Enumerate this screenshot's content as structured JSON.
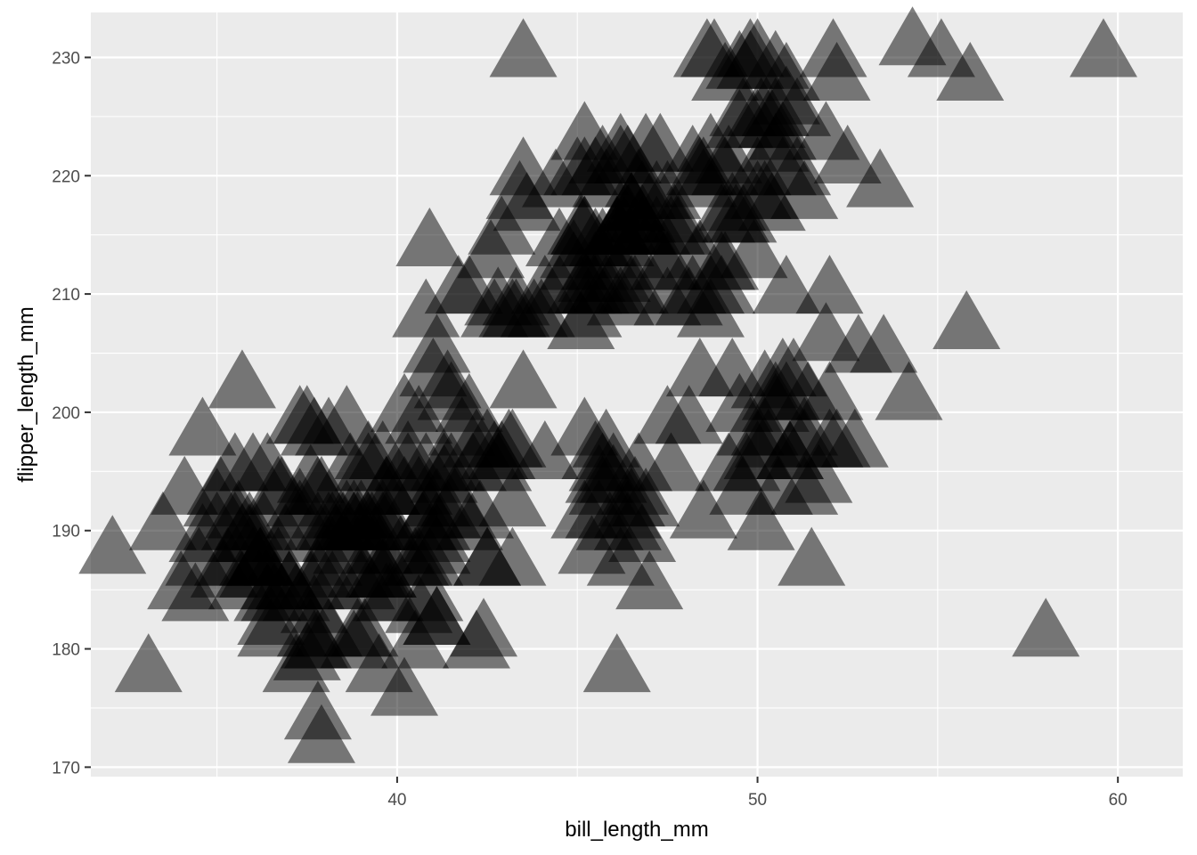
{
  "chart_data": {
    "type": "scatter",
    "marker": "triangle",
    "marker_color": "#000000",
    "marker_opacity": 0.5,
    "panel_background": "#ebebeb",
    "grid_color": "#ffffff",
    "grid": true,
    "xlabel": "bill_length_mm",
    "ylabel": "flipper_length_mm",
    "xlim": [
      31.5,
      61.8
    ],
    "ylim": [
      169.2,
      233.8
    ],
    "x_ticks": [
      40,
      50,
      60
    ],
    "y_ticks": [
      170,
      180,
      190,
      200,
      210,
      220,
      230
    ],
    "points": [
      [
        39.1,
        181
      ],
      [
        39.5,
        186
      ],
      [
        40.3,
        195
      ],
      [
        36.7,
        193
      ],
      [
        39.3,
        190
      ],
      [
        38.9,
        181
      ],
      [
        39.2,
        195
      ],
      [
        34.1,
        193
      ],
      [
        42.0,
        190
      ],
      [
        37.8,
        186
      ],
      [
        37.8,
        180
      ],
      [
        41.1,
        182
      ],
      [
        38.6,
        191
      ],
      [
        34.6,
        198
      ],
      [
        36.6,
        185
      ],
      [
        38.7,
        195
      ],
      [
        42.5,
        197
      ],
      [
        34.4,
        184
      ],
      [
        46.0,
        194
      ],
      [
        37.8,
        174
      ],
      [
        37.7,
        180
      ],
      [
        35.9,
        189
      ],
      [
        38.2,
        185
      ],
      [
        38.8,
        180
      ],
      [
        35.3,
        187
      ],
      [
        40.6,
        183
      ],
      [
        40.5,
        187
      ],
      [
        37.9,
        172
      ],
      [
        40.5,
        180
      ],
      [
        39.5,
        178
      ],
      [
        37.2,
        178
      ],
      [
        39.5,
        188
      ],
      [
        40.9,
        184
      ],
      [
        36.4,
        195
      ],
      [
        39.2,
        196
      ],
      [
        38.8,
        190
      ],
      [
        42.2,
        180
      ],
      [
        37.6,
        181
      ],
      [
        39.8,
        184
      ],
      [
        36.5,
        182
      ],
      [
        40.8,
        195
      ],
      [
        36.0,
        186
      ],
      [
        44.1,
        196
      ],
      [
        37.0,
        185
      ],
      [
        39.6,
        190
      ],
      [
        41.1,
        182
      ],
      [
        37.5,
        179
      ],
      [
        42.3,
        191
      ],
      [
        39.6,
        186
      ],
      [
        40.1,
        188
      ],
      [
        35.0,
        190
      ],
      [
        42.0,
        200
      ],
      [
        34.5,
        187
      ],
      [
        41.4,
        191
      ],
      [
        39.0,
        186
      ],
      [
        40.6,
        193
      ],
      [
        36.5,
        181
      ],
      [
        37.6,
        194
      ],
      [
        35.7,
        185
      ],
      [
        41.3,
        195
      ],
      [
        37.6,
        185
      ],
      [
        41.1,
        192
      ],
      [
        36.4,
        184
      ],
      [
        41.6,
        192
      ],
      [
        35.5,
        195
      ],
      [
        41.1,
        188
      ],
      [
        35.9,
        190
      ],
      [
        41.8,
        198
      ],
      [
        33.5,
        190
      ],
      [
        39.7,
        190
      ],
      [
        39.6,
        196
      ],
      [
        45.8,
        197
      ],
      [
        35.5,
        190
      ],
      [
        42.8,
        195
      ],
      [
        40.9,
        191
      ],
      [
        37.2,
        184
      ],
      [
        36.2,
        187
      ],
      [
        42.1,
        195
      ],
      [
        34.6,
        189
      ],
      [
        42.9,
        196
      ],
      [
        36.7,
        187
      ],
      [
        35.1,
        193
      ],
      [
        37.3,
        191
      ],
      [
        41.3,
        194
      ],
      [
        36.3,
        190
      ],
      [
        36.9,
        189
      ],
      [
        38.3,
        189
      ],
      [
        38.9,
        190
      ],
      [
        35.7,
        202
      ],
      [
        41.1,
        205
      ],
      [
        34.0,
        185
      ],
      [
        39.6,
        186
      ],
      [
        36.2,
        187
      ],
      [
        40.8,
        208
      ],
      [
        38.1,
        190
      ],
      [
        40.3,
        196
      ],
      [
        33.1,
        178
      ],
      [
        43.2,
        192
      ],
      [
        35.0,
        192
      ],
      [
        41.0,
        203
      ],
      [
        37.7,
        183
      ],
      [
        37.8,
        190
      ],
      [
        37.9,
        193
      ],
      [
        39.7,
        184
      ],
      [
        38.6,
        199
      ],
      [
        38.2,
        190
      ],
      [
        38.1,
        181
      ],
      [
        43.2,
        197
      ],
      [
        38.1,
        198
      ],
      [
        45.6,
        191
      ],
      [
        39.7,
        193
      ],
      [
        42.2,
        197
      ],
      [
        39.6,
        191
      ],
      [
        42.7,
        196
      ],
      [
        38.6,
        188
      ],
      [
        37.3,
        199
      ],
      [
        35.7,
        189
      ],
      [
        41.1,
        189
      ],
      [
        36.2,
        187
      ],
      [
        37.7,
        198
      ],
      [
        40.2,
        176
      ],
      [
        41.4,
        202
      ],
      [
        35.2,
        186
      ],
      [
        40.6,
        199
      ],
      [
        38.8,
        191
      ],
      [
        41.5,
        195
      ],
      [
        39.0,
        191
      ],
      [
        44.1,
        210
      ],
      [
        38.5,
        190
      ],
      [
        43.1,
        197
      ],
      [
        36.8,
        193
      ],
      [
        37.5,
        199
      ],
      [
        38.1,
        187
      ],
      [
        41.1,
        190
      ],
      [
        35.6,
        191
      ],
      [
        40.2,
        200
      ],
      [
        37.0,
        185
      ],
      [
        39.7,
        193
      ],
      [
        40.2,
        193
      ],
      [
        40.6,
        187
      ],
      [
        32.1,
        188
      ],
      [
        40.7,
        190
      ],
      [
        37.3,
        192
      ],
      [
        39.0,
        185
      ],
      [
        39.2,
        190
      ],
      [
        36.6,
        184
      ],
      [
        36.0,
        195
      ],
      [
        37.8,
        193
      ],
      [
        36.0,
        187
      ],
      [
        41.5,
        201
      ],
      [
        46.1,
        211
      ],
      [
        50.0,
        230
      ],
      [
        48.7,
        210
      ],
      [
        50.0,
        218
      ],
      [
        47.6,
        215
      ],
      [
        46.5,
        210
      ],
      [
        45.4,
        211
      ],
      [
        46.7,
        219
      ],
      [
        43.3,
        209
      ],
      [
        46.8,
        215
      ],
      [
        40.9,
        214
      ],
      [
        49.0,
        216
      ],
      [
        45.5,
        214
      ],
      [
        48.4,
        213
      ],
      [
        45.8,
        210
      ],
      [
        49.3,
        217
      ],
      [
        42.0,
        210
      ],
      [
        49.2,
        221
      ],
      [
        46.2,
        209
      ],
      [
        48.7,
        222
      ],
      [
        50.2,
        218
      ],
      [
        45.1,
        215
      ],
      [
        46.5,
        213
      ],
      [
        46.3,
        215
      ],
      [
        42.9,
        215
      ],
      [
        46.1,
        215
      ],
      [
        47.8,
        215
      ],
      [
        48.2,
        210
      ],
      [
        50.0,
        220
      ],
      [
        47.3,
        222
      ],
      [
        42.8,
        209
      ],
      [
        45.1,
        207
      ],
      [
        59.6,
        230
      ],
      [
        49.1,
        220
      ],
      [
        48.4,
        220
      ],
      [
        42.6,
        213
      ],
      [
        44.4,
        219
      ],
      [
        44.0,
        208
      ],
      [
        48.7,
        208
      ],
      [
        42.7,
        208
      ],
      [
        49.6,
        225
      ],
      [
        45.3,
        210
      ],
      [
        49.6,
        216
      ],
      [
        50.5,
        222
      ],
      [
        43.6,
        217
      ],
      [
        45.5,
        210
      ],
      [
        50.5,
        225
      ],
      [
        44.9,
        213
      ],
      [
        45.2,
        215
      ],
      [
        46.6,
        210
      ],
      [
        48.5,
        220
      ],
      [
        45.1,
        210
      ],
      [
        50.1,
        225
      ],
      [
        46.5,
        217
      ],
      [
        45.0,
        220
      ],
      [
        43.8,
        208
      ],
      [
        45.5,
        220
      ],
      [
        43.2,
        208
      ],
      [
        50.4,
        224
      ],
      [
        45.3,
        208
      ],
      [
        46.2,
        221
      ],
      [
        45.7,
        214
      ],
      [
        54.3,
        231
      ],
      [
        45.8,
        219
      ],
      [
        49.8,
        230
      ],
      [
        46.2,
        214
      ],
      [
        49.5,
        229
      ],
      [
        43.5,
        220
      ],
      [
        50.7,
        223
      ],
      [
        47.7,
        216
      ],
      [
        46.4,
        221
      ],
      [
        48.2,
        221
      ],
      [
        46.5,
        217
      ],
      [
        46.4,
        216
      ],
      [
        48.6,
        230
      ],
      [
        47.5,
        209
      ],
      [
        51.1,
        220
      ],
      [
        45.2,
        215
      ],
      [
        45.2,
        223
      ],
      [
        49.1,
        212
      ],
      [
        52.5,
        221
      ],
      [
        47.4,
        212
      ],
      [
        50.0,
        224
      ],
      [
        44.9,
        212
      ],
      [
        50.8,
        228
      ],
      [
        43.4,
        218
      ],
      [
        51.3,
        218
      ],
      [
        47.5,
        212
      ],
      [
        52.1,
        230
      ],
      [
        47.5,
        218
      ],
      [
        52.2,
        228
      ],
      [
        45.5,
        212
      ],
      [
        49.5,
        224
      ],
      [
        44.5,
        214
      ],
      [
        50.8,
        226
      ],
      [
        49.4,
        216
      ],
      [
        46.9,
        222
      ],
      [
        48.4,
        203
      ],
      [
        51.1,
        225
      ],
      [
        48.5,
        219
      ],
      [
        55.9,
        228
      ],
      [
        47.2,
        215
      ],
      [
        49.1,
        228
      ],
      [
        46.8,
        215
      ],
      [
        41.7,
        210
      ],
      [
        53.4,
        219
      ],
      [
        43.3,
        208
      ],
      [
        48.1,
        209
      ],
      [
        50.5,
        229
      ],
      [
        49.8,
        229
      ],
      [
        43.5,
        230
      ],
      [
        50.7,
        220
      ],
      [
        51.9,
        223
      ],
      [
        46.8,
        216
      ],
      [
        45.7,
        221
      ],
      [
        55.1,
        230
      ],
      [
        44.5,
        210
      ],
      [
        48.8,
        230
      ],
      [
        47.2,
        218
      ],
      [
        46.1,
        215
      ],
      [
        50.4,
        217
      ],
      [
        46.5,
        217
      ],
      [
        45.2,
        220
      ],
      [
        46.2,
        222
      ],
      [
        46.8,
        218
      ],
      [
        49.9,
        213
      ],
      [
        46.5,
        192
      ],
      [
        50.0,
        196
      ],
      [
        51.3,
        193
      ],
      [
        45.4,
        188
      ],
      [
        52.7,
        197
      ],
      [
        45.2,
        198
      ],
      [
        46.1,
        178
      ],
      [
        51.3,
        197
      ],
      [
        46.0,
        195
      ],
      [
        51.3,
        198
      ],
      [
        46.6,
        193
      ],
      [
        51.7,
        194
      ],
      [
        47.0,
        185
      ],
      [
        52.0,
        201
      ],
      [
        45.9,
        190
      ],
      [
        50.5,
        201
      ],
      [
        50.3,
        197
      ],
      [
        58.0,
        181
      ],
      [
        46.4,
        190
      ],
      [
        49.2,
        195
      ],
      [
        42.4,
        181
      ],
      [
        48.5,
        191
      ],
      [
        43.2,
        187
      ],
      [
        50.6,
        193
      ],
      [
        46.7,
        195
      ],
      [
        52.0,
        197
      ],
      [
        50.5,
        200
      ],
      [
        49.5,
        200
      ],
      [
        46.4,
        191
      ],
      [
        52.8,
        205
      ],
      [
        40.9,
        187
      ],
      [
        54.2,
        201
      ],
      [
        42.5,
        187
      ],
      [
        51.0,
        203
      ],
      [
        49.7,
        195
      ],
      [
        47.5,
        199
      ],
      [
        47.6,
        195
      ],
      [
        52.0,
        210
      ],
      [
        46.9,
        192
      ],
      [
        53.5,
        205
      ],
      [
        49.0,
        210
      ],
      [
        46.2,
        187
      ],
      [
        50.9,
        196
      ],
      [
        45.5,
        196
      ],
      [
        50.9,
        196
      ],
      [
        50.8,
        201
      ],
      [
        50.1,
        190
      ],
      [
        49.0,
        212
      ],
      [
        51.5,
        187
      ],
      [
        49.8,
        198
      ],
      [
        48.1,
        199
      ],
      [
        51.4,
        201
      ],
      [
        45.7,
        193
      ],
      [
        50.7,
        203
      ],
      [
        42.5,
        187
      ],
      [
        52.2,
        197
      ],
      [
        45.2,
        191
      ],
      [
        49.3,
        203
      ],
      [
        50.2,
        202
      ],
      [
        45.6,
        194
      ],
      [
        51.9,
        206
      ],
      [
        46.8,
        189
      ],
      [
        45.7,
        195
      ],
      [
        55.8,
        207
      ],
      [
        43.5,
        202
      ],
      [
        49.6,
        193
      ],
      [
        50.8,
        210
      ],
      [
        50.2,
        198
      ]
    ]
  }
}
